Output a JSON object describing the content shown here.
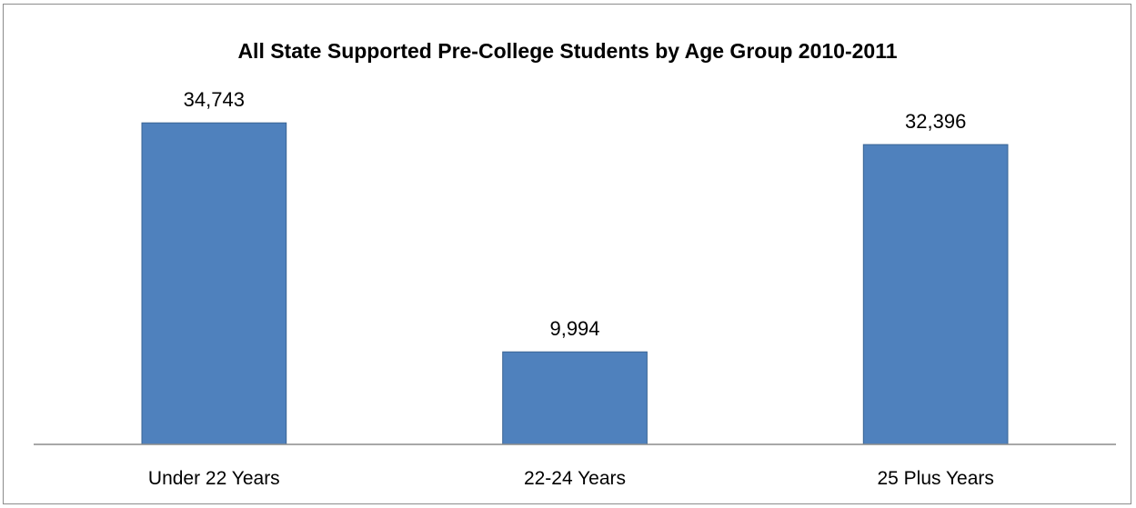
{
  "chart_data": {
    "type": "bar",
    "title": "All State Supported Pre-College Students by Age Group  2010-2011",
    "xlabel": "",
    "ylabel": "",
    "categories": [
      "Under 22 Years",
      "22-24 Years",
      "25 Plus Years"
    ],
    "values": [
      34743,
      9994,
      32396
    ],
    "value_labels": [
      "34,743",
      "9,994",
      "32,396"
    ],
    "ylim": [
      0,
      38000
    ],
    "grid": false,
    "legend": "none",
    "bar_color": "#4f81bd",
    "bar_edge_color": "#3a6494"
  }
}
